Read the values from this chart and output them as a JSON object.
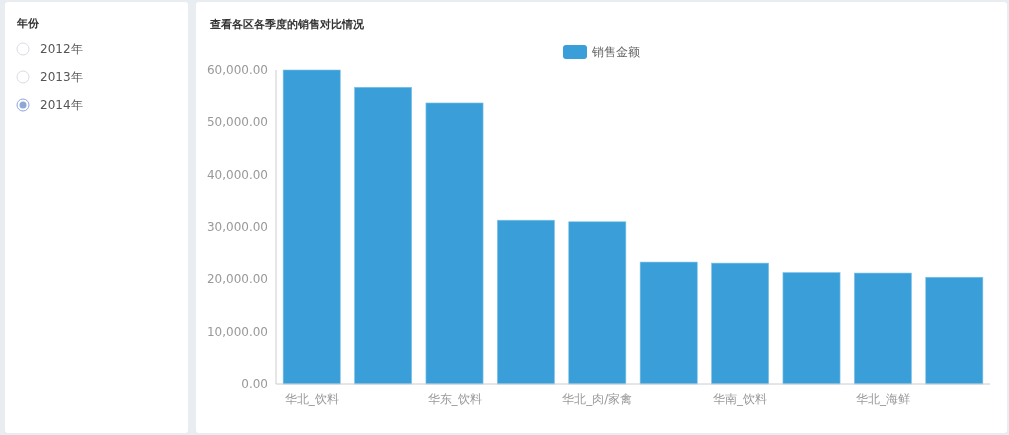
{
  "chart_data": [
    {
      "type": "other",
      "title": "年份",
      "categories": [
        "2012年",
        "2013年",
        "2014年"
      ]
    },
    {
      "type": "bar",
      "title": "查看各区各季度的销售对比情况",
      "categories": [
        "华北_饮料",
        null,
        "华东_饮料",
        null,
        "华北_肉/家禽",
        null,
        "华南_饮料",
        null,
        "华北_海鲜",
        null
      ],
      "series": [
        {
          "name": "销售金额",
          "color": "#3a9fd8",
          "values": [
            60000,
            56700,
            53700,
            31300,
            31000,
            23300,
            23100,
            21300,
            21200,
            20400
          ]
        }
      ],
      "ylim": [
        0,
        60000
      ],
      "yticks": [
        {
          "value": 0,
          "label": "0.00"
        },
        {
          "value": 10000,
          "label": "10,000.00"
        },
        {
          "value": 20000,
          "label": "20,000.00"
        },
        {
          "value": 30000,
          "label": "30,000.00"
        },
        {
          "value": 40000,
          "label": "40,000.00"
        },
        {
          "value": 50000,
          "label": "50,000.00"
        },
        {
          "value": 60000,
          "label": "60,000.00"
        }
      ],
      "legend": "top",
      "grid": false
    }
  ]
}
